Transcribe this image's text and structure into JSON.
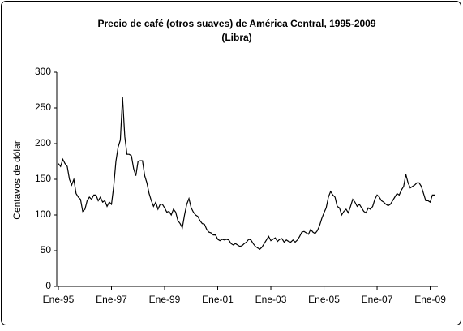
{
  "chart_data": {
    "type": "line",
    "title": "Precio de café (otros suaves) de América Central, 1995-2009",
    "subtitle": "(Libra)",
    "y_label": "Centavos de dólar",
    "color": "#000000",
    "categories": [
      "Ene-95",
      null,
      null,
      null,
      null,
      null,
      null,
      null,
      null,
      null,
      null,
      null,
      null,
      null,
      null,
      null,
      null,
      null,
      null,
      null,
      null,
      null,
      null,
      null,
      "Ene-97",
      null,
      null,
      null,
      null,
      null,
      null,
      null,
      null,
      null,
      null,
      null,
      null,
      null,
      null,
      null,
      null,
      null,
      null,
      null,
      null,
      null,
      null,
      null,
      "Ene-99",
      null,
      null,
      null,
      null,
      null,
      null,
      null,
      null,
      null,
      null,
      null,
      null,
      null,
      null,
      null,
      null,
      null,
      null,
      null,
      null,
      null,
      null,
      null,
      "Ene-01",
      null,
      null,
      null,
      null,
      null,
      null,
      null,
      null,
      null,
      null,
      null,
      null,
      null,
      null,
      null,
      null,
      null,
      null,
      null,
      null,
      null,
      null,
      null,
      "Ene-03",
      null,
      null,
      null,
      null,
      null,
      null,
      null,
      null,
      null,
      null,
      null,
      null,
      null,
      null,
      null,
      null,
      null,
      null,
      null,
      null,
      null,
      null,
      null,
      "Ene-05",
      null,
      null,
      null,
      null,
      null,
      null,
      null,
      null,
      null,
      null,
      null,
      null,
      null,
      null,
      null,
      null,
      null,
      null,
      null,
      null,
      null,
      null,
      null,
      "Ene-07",
      null,
      null,
      null,
      null,
      null,
      null,
      null,
      null,
      null,
      null,
      null,
      null,
      null,
      null,
      null,
      null,
      null,
      null,
      null,
      null,
      null,
      null,
      null,
      "Ene-09",
      null,
      null
    ],
    "values": [
      172,
      168,
      178,
      172,
      168,
      150,
      142,
      150,
      130,
      125,
      122,
      105,
      108,
      120,
      125,
      122,
      128,
      128,
      120,
      125,
      118,
      120,
      112,
      118,
      115,
      140,
      175,
      195,
      205,
      265,
      210,
      185,
      185,
      183,
      165,
      155,
      175,
      176,
      176,
      155,
      145,
      130,
      120,
      112,
      118,
      108,
      115,
      115,
      110,
      104,
      105,
      100,
      108,
      104,
      92,
      88,
      82,
      100,
      115,
      123,
      110,
      104,
      100,
      98,
      92,
      88,
      87,
      80,
      76,
      75,
      72,
      72,
      66,
      64,
      66,
      65,
      66,
      65,
      60,
      58,
      60,
      58,
      56,
      57,
      60,
      62,
      66,
      65,
      60,
      56,
      54,
      52,
      55,
      60,
      65,
      70,
      64,
      66,
      68,
      63,
      66,
      67,
      62,
      65,
      63,
      62,
      65,
      62,
      65,
      70,
      76,
      77,
      75,
      73,
      80,
      76,
      74,
      78,
      85,
      95,
      103,
      110,
      125,
      133,
      128,
      125,
      112,
      110,
      100,
      105,
      108,
      103,
      112,
      122,
      118,
      112,
      115,
      110,
      105,
      103,
      110,
      108,
      112,
      122,
      128,
      125,
      120,
      118,
      115,
      113,
      115,
      120,
      125,
      130,
      128,
      135,
      140,
      157,
      145,
      138,
      140,
      142,
      145,
      145,
      140,
      130,
      120,
      120,
      118,
      128,
      128
    ],
    "ylim": [
      0,
      300
    ],
    "yticks": [
      0,
      50,
      100,
      150,
      200,
      250,
      300
    ],
    "grid": false
  }
}
